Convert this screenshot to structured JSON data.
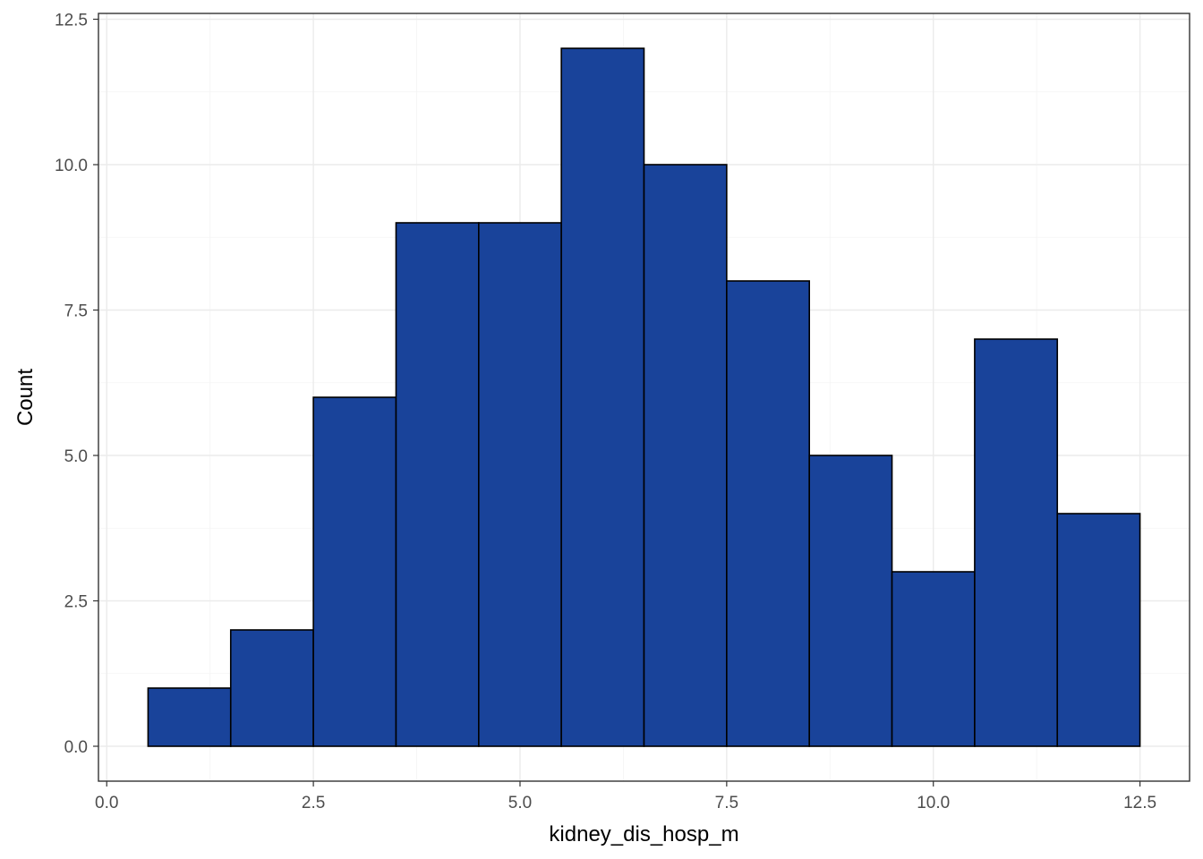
{
  "chart_data": {
    "type": "bar",
    "subtype": "histogram",
    "xlabel": "kidney_dis_hosp_m",
    "ylabel": "Count",
    "xlim": [
      -0.1,
      13.1
    ],
    "ylim": [
      -0.6,
      12.6
    ],
    "x_ticks": [
      0.0,
      2.5,
      5.0,
      7.5,
      10.0,
      12.5
    ],
    "x_tick_labels": [
      "0.0",
      "2.5",
      "5.0",
      "7.5",
      "10.0",
      "12.5"
    ],
    "y_ticks": [
      0.0,
      2.5,
      5.0,
      7.5,
      10.0,
      12.5
    ],
    "y_tick_labels": [
      "0.0",
      "2.5",
      "5.0",
      "7.5",
      "10.0",
      "12.5"
    ],
    "bins": [
      {
        "x0": 0.5,
        "x1": 1.5,
        "count": 1
      },
      {
        "x0": 1.5,
        "x1": 2.5,
        "count": 2
      },
      {
        "x0": 2.5,
        "x1": 3.5,
        "count": 6
      },
      {
        "x0": 3.5,
        "x1": 4.5,
        "count": 9
      },
      {
        "x0": 4.5,
        "x1": 5.5,
        "count": 9
      },
      {
        "x0": 5.5,
        "x1": 6.5,
        "count": 12
      },
      {
        "x0": 6.5,
        "x1": 7.5,
        "count": 10
      },
      {
        "x0": 7.5,
        "x1": 8.5,
        "count": 8
      },
      {
        "x0": 8.5,
        "x1": 9.5,
        "count": 5
      },
      {
        "x0": 9.5,
        "x1": 10.5,
        "count": 3
      },
      {
        "x0": 10.5,
        "x1": 11.5,
        "count": 7
      },
      {
        "x0": 11.5,
        "x1": 12.5,
        "count": 4
      }
    ],
    "grid": true,
    "legend": "none",
    "colors": {
      "bar_fill": "#19439a",
      "bar_outline": "#000000",
      "panel_background": "#ffffff",
      "grid": "#ebebeb"
    }
  }
}
